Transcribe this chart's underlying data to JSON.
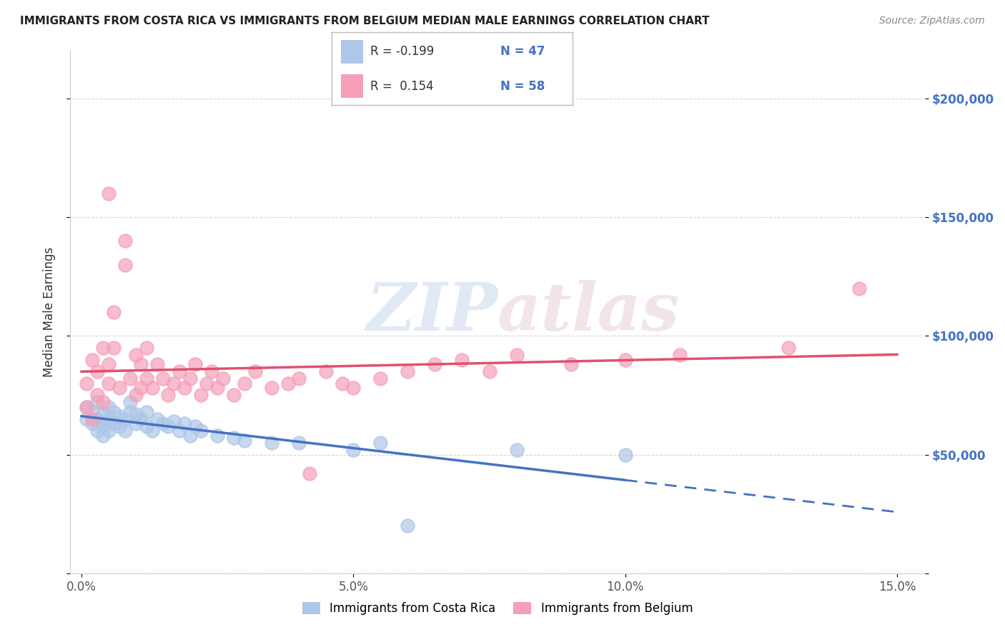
{
  "title": "IMMIGRANTS FROM COSTA RICA VS IMMIGRANTS FROM BELGIUM MEDIAN MALE EARNINGS CORRELATION CHART",
  "source": "Source: ZipAtlas.com",
  "ylabel": "Median Male Earnings",
  "xlim": [
    -0.002,
    0.155
  ],
  "ylim": [
    0,
    220000
  ],
  "yticks": [
    0,
    50000,
    100000,
    150000,
    200000
  ],
  "right_ytick_labels": [
    "",
    "$50,000",
    "$100,000",
    "$150,000",
    "$200,000"
  ],
  "xticks": [
    0.0,
    0.05,
    0.1,
    0.15
  ],
  "xtick_labels": [
    "0.0%",
    "5.0%",
    "10.0%",
    "15.0%"
  ],
  "legend_r1": "R = -0.199",
  "legend_n1": "N = 47",
  "legend_r2": "R =  0.154",
  "legend_n2": "N = 58",
  "series1_label": "Immigrants from Costa Rica",
  "series2_label": "Immigrants from Belgium",
  "series1_color": "#aec6e8",
  "series2_color": "#f5a0b8",
  "line1_color": "#4472c4",
  "line2_color": "#e05070",
  "background_color": "#ffffff",
  "watermark_zip": "ZIP",
  "watermark_atlas": "atlas",
  "costa_rica_x": [
    0.001,
    0.001,
    0.002,
    0.002,
    0.003,
    0.003,
    0.003,
    0.004,
    0.004,
    0.004,
    0.004,
    0.005,
    0.005,
    0.005,
    0.006,
    0.006,
    0.007,
    0.007,
    0.008,
    0.008,
    0.009,
    0.009,
    0.01,
    0.01,
    0.011,
    0.012,
    0.012,
    0.013,
    0.014,
    0.015,
    0.016,
    0.017,
    0.018,
    0.019,
    0.02,
    0.021,
    0.022,
    0.025,
    0.028,
    0.03,
    0.035,
    0.04,
    0.05,
    0.055,
    0.08,
    0.1,
    0.06
  ],
  "costa_rica_y": [
    65000,
    70000,
    63000,
    68000,
    60000,
    65000,
    72000,
    62000,
    67000,
    58000,
    64000,
    70000,
    60000,
    65000,
    63000,
    68000,
    62000,
    66000,
    65000,
    60000,
    68000,
    72000,
    63000,
    67000,
    65000,
    62000,
    68000,
    60000,
    65000,
    63000,
    62000,
    64000,
    60000,
    63000,
    58000,
    62000,
    60000,
    58000,
    57000,
    56000,
    55000,
    55000,
    52000,
    55000,
    52000,
    50000,
    20000
  ],
  "belgium_x": [
    0.001,
    0.001,
    0.002,
    0.002,
    0.003,
    0.003,
    0.004,
    0.004,
    0.005,
    0.005,
    0.005,
    0.006,
    0.006,
    0.007,
    0.008,
    0.008,
    0.009,
    0.01,
    0.01,
    0.011,
    0.011,
    0.012,
    0.012,
    0.013,
    0.014,
    0.015,
    0.016,
    0.017,
    0.018,
    0.019,
    0.02,
    0.021,
    0.022,
    0.023,
    0.024,
    0.025,
    0.026,
    0.028,
    0.03,
    0.032,
    0.035,
    0.038,
    0.04,
    0.042,
    0.045,
    0.048,
    0.05,
    0.055,
    0.06,
    0.065,
    0.07,
    0.075,
    0.08,
    0.09,
    0.1,
    0.11,
    0.13,
    0.143
  ],
  "belgium_y": [
    70000,
    80000,
    65000,
    90000,
    75000,
    85000,
    72000,
    95000,
    80000,
    88000,
    160000,
    95000,
    110000,
    78000,
    130000,
    140000,
    82000,
    75000,
    92000,
    78000,
    88000,
    82000,
    95000,
    78000,
    88000,
    82000,
    75000,
    80000,
    85000,
    78000,
    82000,
    88000,
    75000,
    80000,
    85000,
    78000,
    82000,
    75000,
    80000,
    85000,
    78000,
    80000,
    82000,
    42000,
    85000,
    80000,
    78000,
    82000,
    85000,
    88000,
    90000,
    85000,
    92000,
    88000,
    90000,
    92000,
    95000,
    120000
  ]
}
